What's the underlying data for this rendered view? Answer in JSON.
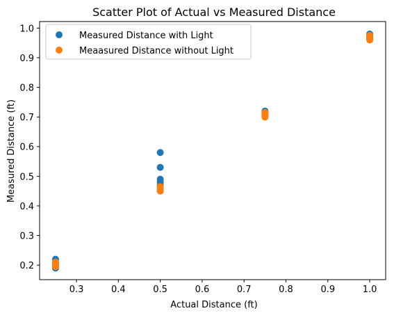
{
  "chart_data": {
    "type": "scatter",
    "title": "Scatter Plot of Actual vs Measured Distance",
    "xlabel": "Actual Distance (ft)",
    "ylabel": "Measured Distance (ft)",
    "xlim": [
      0.212,
      1.038
    ],
    "ylim": [
      0.151,
      1.022
    ],
    "xticks": [
      0.3,
      0.4,
      0.5,
      0.6,
      0.7,
      0.8,
      0.9,
      1.0
    ],
    "xtick_labels": [
      "0.3",
      "0.4",
      "0.5",
      "0.6",
      "0.7",
      "0.8",
      "0.9",
      "1.0"
    ],
    "yticks": [
      0.2,
      0.3,
      0.4,
      0.5,
      0.6,
      0.7,
      0.8,
      0.9,
      1.0
    ],
    "ytick_labels": [
      "0.2",
      "0.3",
      "0.4",
      "0.5",
      "0.6",
      "0.7",
      "0.8",
      "0.9",
      "1.0"
    ],
    "grid": false,
    "legend_position": "top-left",
    "series": [
      {
        "name": "Measured Distance with Light",
        "color": "#1f77b4",
        "x": [
          0.25,
          0.25,
          0.25,
          0.25,
          0.25,
          0.5,
          0.5,
          0.5,
          0.5,
          0.5,
          0.5,
          0.5,
          0.75,
          0.75,
          0.75,
          0.75,
          1.0,
          1.0,
          1.0,
          1.0
        ],
        "y": [
          0.19,
          0.2,
          0.21,
          0.22,
          0.195,
          0.58,
          0.53,
          0.49,
          0.48,
          0.47,
          0.46,
          0.45,
          0.72,
          0.715,
          0.71,
          0.705,
          0.98,
          0.975,
          0.97,
          0.965
        ]
      },
      {
        "name": "Meaasured Distance without Light",
        "color": "#ff7f0e",
        "x": [
          0.25,
          0.25,
          0.25,
          0.25,
          0.5,
          0.5,
          0.5,
          0.5,
          0.75,
          0.75,
          0.75,
          0.75,
          1.0,
          1.0,
          1.0,
          1.0
        ],
        "y": [
          0.2,
          0.205,
          0.21,
          0.195,
          0.45,
          0.455,
          0.46,
          0.465,
          0.7,
          0.705,
          0.71,
          0.715,
          0.96,
          0.965,
          0.97,
          0.975
        ]
      }
    ]
  }
}
